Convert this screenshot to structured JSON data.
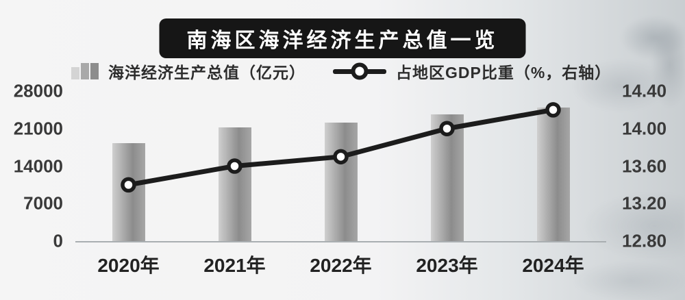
{
  "title": "南海区海洋经济生产总值一览",
  "legend": {
    "bar_label": "海洋经济生产总值（亿元）",
    "line_label": "占地区GDP比重（%，右轴）"
  },
  "chart_data": {
    "type": "bar",
    "subtype": "bar-and-line-combo",
    "title": "南海区海洋经济生产总值一览",
    "categories": [
      "2020年",
      "2021年",
      "2022年",
      "2023年",
      "2024年"
    ],
    "series": [
      {
        "name": "海洋经济生产总值（亿元）",
        "type": "bar",
        "axis": "left",
        "values": [
          18300,
          21200,
          22100,
          23600,
          24900
        ]
      },
      {
        "name": "占地区GDP比重（%，右轴）",
        "type": "line",
        "axis": "right",
        "values": [
          13.4,
          13.6,
          13.7,
          14.0,
          14.2
        ]
      }
    ],
    "left_axis": {
      "range": [
        0,
        28000
      ],
      "ticks": [
        0,
        7000,
        14000,
        21000,
        28000
      ],
      "labels": [
        "0",
        "7000",
        "14000",
        "21000",
        "28000"
      ]
    },
    "right_axis": {
      "range": [
        12.8,
        14.4
      ],
      "ticks": [
        12.8,
        13.2,
        13.6,
        14.0,
        14.4
      ],
      "labels": [
        "12.80",
        "13.20",
        "13.60",
        "14.00",
        "14.40"
      ]
    },
    "grid": "off",
    "legend_position": "top",
    "colors": {
      "bar_light": "#cfcfcf",
      "bar_mid": "#a6a6a6",
      "bar_dark": "#8c8c8c",
      "line": "#1c1c1c",
      "marker_fill": "#ffffff",
      "axis_line": "#a9aeb1",
      "title_bg": "#161616",
      "title_text": "#ffffff"
    }
  }
}
